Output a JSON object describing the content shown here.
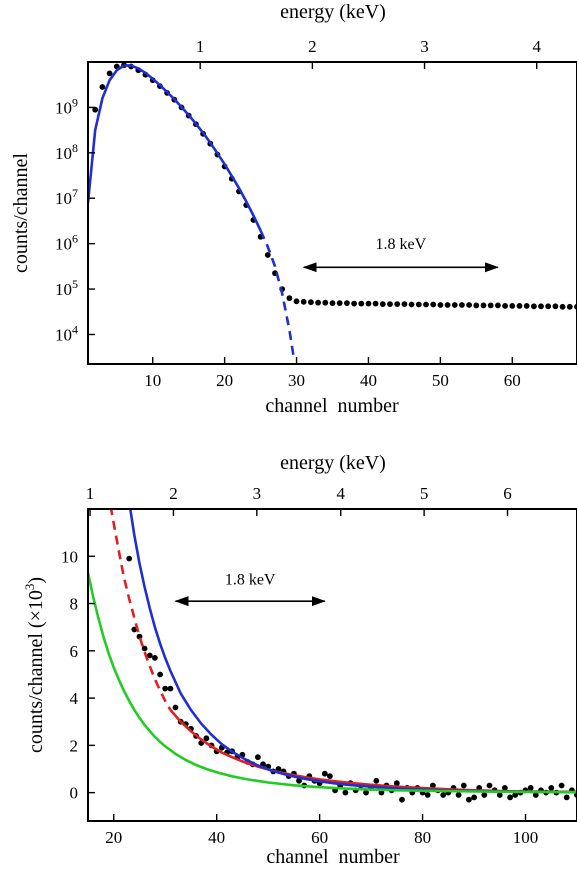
{
  "chart_data": [
    {
      "type": "scatter",
      "xlabel": "channel  number",
      "ylabel": "counts/channel",
      "x2label": "energy (keV)",
      "xlim": [
        1,
        69
      ],
      "yscale": "log",
      "ylim_log10": [
        3.35,
        10.0
      ],
      "x_ticks": [
        10,
        20,
        30,
        40,
        50,
        60
      ],
      "x_tick_labels": [
        "10",
        "20",
        "30",
        "40",
        "50",
        "60"
      ],
      "y_ticks_log10": [
        4,
        5,
        6,
        7,
        8,
        9
      ],
      "y_tick_labels": [
        {
          "base": "10",
          "exp": "4"
        },
        {
          "base": "10",
          "exp": "5"
        },
        {
          "base": "10",
          "exp": "6"
        },
        {
          "base": "10",
          "exp": "7"
        },
        {
          "base": "10",
          "exp": "8"
        },
        {
          "base": "10",
          "exp": "9"
        }
      ],
      "x2_ticks_channel": [
        16.6,
        32.2,
        47.8,
        63.4
      ],
      "x2_tick_labels": [
        "1",
        "2",
        "3",
        "4"
      ],
      "annotation": {
        "text": "1.8 keV",
        "x_from": 31,
        "x_to": 58,
        "y_log10": 5.48,
        "label_y_log10": 5.88
      },
      "series": [
        {
          "kind": "points",
          "color": "#000000",
          "x": [
            2,
            3,
            4,
            5,
            6,
            7,
            8,
            9,
            10,
            11,
            12,
            13,
            14,
            15,
            16,
            17,
            18,
            19,
            20,
            21,
            22,
            23,
            24,
            25,
            26,
            27,
            28,
            29,
            30,
            31,
            32,
            33,
            34,
            35,
            36,
            37,
            38,
            39,
            40,
            41,
            42,
            43,
            44,
            45,
            46,
            47,
            48,
            49,
            50,
            51,
            52,
            53,
            54,
            55,
            56,
            57,
            58,
            59,
            60,
            61,
            62,
            63,
            64,
            65,
            66,
            67,
            68,
            69
          ],
          "y_log10": [
            8.95,
            9.45,
            9.75,
            9.9,
            9.93,
            9.9,
            9.82,
            9.72,
            9.6,
            9.47,
            9.32,
            9.17,
            9.0,
            8.82,
            8.63,
            8.42,
            8.2,
            7.96,
            7.7,
            7.43,
            7.15,
            6.85,
            6.52,
            6.15,
            5.75,
            5.35,
            5.0,
            4.8,
            4.73,
            4.72,
            4.71,
            4.7,
            4.7,
            4.69,
            4.69,
            4.69,
            4.68,
            4.68,
            4.68,
            4.68,
            4.67,
            4.67,
            4.67,
            4.67,
            4.66,
            4.66,
            4.66,
            4.66,
            4.65,
            4.65,
            4.65,
            4.65,
            4.65,
            4.64,
            4.64,
            4.64,
            4.64,
            4.63,
            4.63,
            4.63,
            4.63,
            4.62,
            4.62,
            4.62,
            4.62,
            4.61,
            4.61,
            4.61
          ]
        },
        {
          "kind": "curve",
          "color": "#1f2fd0",
          "dash": false,
          "x": [
            1.0,
            2,
            3,
            4,
            5,
            6,
            7,
            8,
            9,
            10,
            11,
            12,
            13,
            14,
            15,
            16,
            17,
            18,
            19,
            20,
            21,
            22,
            23,
            24,
            25
          ],
          "y_log10": [
            6.9,
            8.5,
            9.2,
            9.6,
            9.82,
            9.92,
            9.92,
            9.86,
            9.76,
            9.63,
            9.49,
            9.34,
            9.18,
            9.01,
            8.83,
            8.64,
            8.44,
            8.22,
            7.99,
            7.75,
            7.49,
            7.22,
            6.93,
            6.62,
            6.29
          ]
        },
        {
          "kind": "curve",
          "color": "#1f2fd0",
          "dash": true,
          "x": [
            25,
            26,
            27,
            28,
            29.0,
            29.6
          ],
          "y_log10": [
            6.29,
            5.93,
            5.5,
            4.9,
            4.1,
            3.5
          ]
        }
      ]
    },
    {
      "type": "scatter",
      "xlabel": "channel  number",
      "ylabel": "counts/channel (×10",
      "ylabel_sup": "3",
      "ylabel_end": ")",
      "x2label": "energy (keV)",
      "xlim": [
        15,
        110
      ],
      "ylim": [
        -1.2,
        12.0
      ],
      "x_ticks": [
        20,
        40,
        60,
        80,
        100
      ],
      "x_tick_labels": [
        "20",
        "40",
        "60",
        "80",
        "100"
      ],
      "y_ticks": [
        0,
        2,
        4,
        6,
        8,
        10
      ],
      "y_tick_labels": [
        "0",
        "2",
        "4",
        "6",
        "8",
        "10"
      ],
      "x2_ticks_channel": [
        15.4,
        31.6,
        47.8,
        64.1,
        80.3,
        96.5
      ],
      "x2_tick_labels": [
        "1",
        "2",
        "3",
        "4",
        "5",
        "6"
      ],
      "annotation": {
        "text": "1.8 keV",
        "x_from": 32,
        "x_to": 61,
        "y": 8.1,
        "label_y": 8.8
      },
      "series": [
        {
          "kind": "points",
          "color": "#000000",
          "x": [
            23,
            24,
            25,
            26,
            27,
            28,
            29,
            30,
            31,
            32,
            33,
            34,
            35,
            36,
            37,
            38,
            39,
            40,
            41,
            42,
            43,
            44,
            45,
            46,
            47,
            48,
            49,
            50,
            51,
            52,
            53,
            54,
            55,
            56,
            57,
            58,
            59,
            60,
            61,
            62,
            63,
            64,
            65,
            66,
            67,
            68,
            69,
            70,
            71,
            72,
            73,
            74,
            75,
            76,
            77,
            78,
            79,
            80,
            81,
            82,
            83,
            84,
            85,
            86,
            87,
            88,
            89,
            90,
            91,
            92,
            93,
            94,
            95,
            96,
            97,
            98,
            99,
            100,
            101,
            102,
            103,
            104,
            105,
            106,
            107,
            108,
            109,
            110
          ],
          "y": [
            9.9,
            6.9,
            6.6,
            6.1,
            5.8,
            5.7,
            5.0,
            4.4,
            4.4,
            3.6,
            3.0,
            2.9,
            2.7,
            2.4,
            2.1,
            2.3,
            2.0,
            1.75,
            1.9,
            1.7,
            1.75,
            1.5,
            1.6,
            1.3,
            1.2,
            1.5,
            1.2,
            1.1,
            0.9,
            1.0,
            0.9,
            0.7,
            0.8,
            0.5,
            0.3,
            0.7,
            0.5,
            0.4,
            0.8,
            0.7,
            0.1,
            0.3,
            0.0,
            0.4,
            0.1,
            0.3,
            0.0,
            0.2,
            0.5,
            0.0,
            0.3,
            0.1,
            0.4,
            -0.3,
            0.2,
            0.0,
            0.2,
            0.0,
            -0.1,
            0.3,
            0.1,
            -0.1,
            0.0,
            0.2,
            -0.1,
            0.3,
            -0.3,
            -0.2,
            0.2,
            -0.1,
            0.3,
            0.1,
            -0.1,
            0.2,
            -0.2,
            -0.1,
            0.0,
            0.1,
            0.2,
            -0.1,
            0.1,
            0.0,
            0.2,
            0.0,
            0.3,
            -0.2,
            0.1,
            -0.1
          ]
        },
        {
          "kind": "curve",
          "color": "#e02020",
          "dash": true,
          "x": [
            18,
            19,
            20,
            21,
            22,
            23,
            24,
            25,
            26,
            27,
            28,
            29,
            30,
            31
          ],
          "y": [
            14,
            12.6,
            11.4,
            10.2,
            9.1,
            8.2,
            7.4,
            6.6,
            5.95,
            5.35,
            4.8,
            4.32,
            3.88,
            3.5
          ]
        },
        {
          "kind": "curve",
          "color": "#e02020",
          "dash": false,
          "x": [
            31,
            33,
            35,
            37,
            39,
            41,
            43,
            45,
            48,
            51,
            54,
            57,
            60,
            63,
            66,
            70,
            75,
            80,
            85,
            90,
            95,
            100,
            105,
            110
          ],
          "y": [
            3.5,
            3.0,
            2.6,
            2.25,
            1.95,
            1.7,
            1.5,
            1.32,
            1.1,
            0.92,
            0.78,
            0.66,
            0.56,
            0.48,
            0.41,
            0.33,
            0.25,
            0.19,
            0.14,
            0.1,
            0.07,
            0.05,
            0.04,
            0.03
          ]
        },
        {
          "kind": "curve",
          "color": "#1f2fd0",
          "dash": false,
          "x": [
            22,
            23,
            24,
            25,
            26,
            27,
            28,
            29,
            30,
            31,
            33,
            35,
            37,
            39,
            41,
            43,
            45,
            48,
            51,
            54,
            57,
            60,
            63,
            66,
            70,
            75,
            80,
            85,
            90,
            95,
            100,
            105,
            110
          ],
          "y": [
            14,
            12.3,
            10.9,
            9.7,
            8.7,
            7.8,
            7.0,
            6.3,
            5.7,
            5.15,
            4.2,
            3.5,
            2.92,
            2.45,
            2.05,
            1.73,
            1.47,
            1.15,
            0.91,
            0.73,
            0.59,
            0.48,
            0.39,
            0.32,
            0.25,
            0.18,
            0.13,
            0.09,
            0.07,
            0.05,
            0.04,
            0.03,
            0.02
          ]
        },
        {
          "kind": "curve",
          "color": "#22cc22",
          "dash": false,
          "x": [
            15,
            16,
            17,
            18,
            19,
            20,
            21,
            22,
            23,
            24,
            25,
            26,
            27,
            28,
            29,
            30,
            32,
            34,
            36,
            38,
            40,
            43,
            46,
            50,
            55,
            60,
            65,
            70,
            75,
            80,
            90,
            100,
            110
          ],
          "y": [
            9.3,
            8.3,
            7.4,
            6.6,
            5.9,
            5.3,
            4.78,
            4.3,
            3.88,
            3.5,
            3.16,
            2.86,
            2.6,
            2.36,
            2.15,
            1.96,
            1.64,
            1.38,
            1.17,
            1.0,
            0.86,
            0.69,
            0.56,
            0.43,
            0.31,
            0.23,
            0.17,
            0.13,
            0.1,
            0.08,
            0.05,
            0.03,
            0.02
          ]
        }
      ]
    }
  ]
}
